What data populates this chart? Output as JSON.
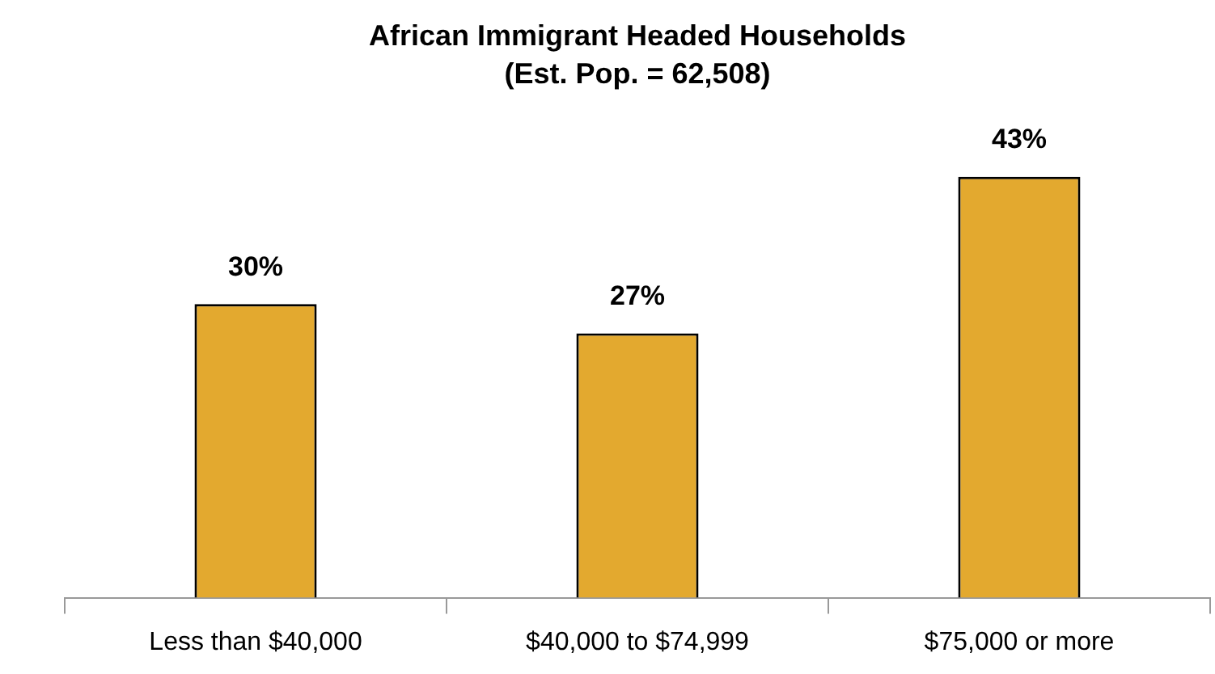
{
  "chart_data": {
    "type": "bar",
    "title": "African Immigrant Headed Households",
    "subtitle": "(Est. Pop. = 62,508)",
    "categories": [
      "Less than $40,000",
      "$40,000 to $74,999",
      "$75,000 or more"
    ],
    "values": [
      30,
      27,
      43
    ],
    "value_labels": [
      "30%",
      "27%",
      "43%"
    ],
    "color": "#e3a92f",
    "tick_labels": "x"
  }
}
